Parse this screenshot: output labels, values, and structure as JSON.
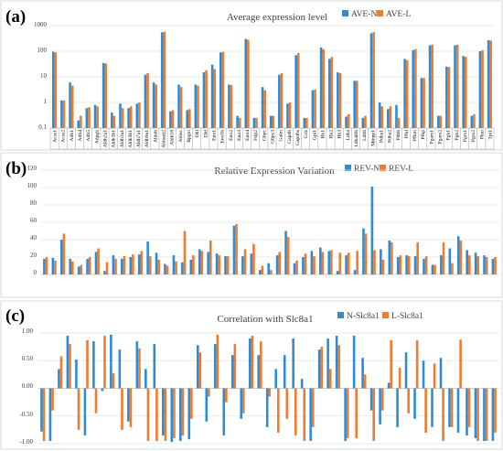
{
  "panel_labels": [
    "(a)",
    "(b)",
    "(c)"
  ],
  "colors": {
    "series1": "#2e8bd6",
    "series2": "#ee7b2e"
  },
  "chart_data": [
    {
      "type": "bar",
      "title": "Average expression level",
      "yscale": "log",
      "ylim": [
        0.1,
        1000
      ],
      "yticks": [
        "0.1",
        "1",
        "10",
        "100",
        "1000"
      ],
      "legend_position": "top-right",
      "categories": [
        "Acss1",
        "Acss2",
        "Adh1",
        "Adh4",
        "Adh5",
        "Adpgk",
        "Aldh2a1",
        "Aldh1b1",
        "Aldh3a1",
        "Aldh3b1",
        "Aldh7a1",
        "Aldh9a1",
        "Aldob",
        "Aldoart2",
        "Aldh18",
        "Aldoc",
        "Bpgm",
        "Dhl",
        "Dld",
        "Eno1",
        "Eno1b",
        "Eno2",
        "Eno3",
        "Eno4",
        "Ftlp2",
        "G6pc",
        "G6pc3",
        "Galm",
        "Gapdh",
        "Gapdhs",
        "Gck",
        "Gpi1",
        "Hk1",
        "Hk2",
        "Hk3",
        "Ldha",
        "Ldhal6b",
        "Ldhb",
        "Minpp1",
        "Pdha1",
        "Pdha2",
        "Pdhb",
        "Pfkl",
        "Pfkm",
        "Pfkp",
        "Pgam1",
        "Pgam2",
        "Pgk1",
        "Pgk2",
        "Pgm1",
        "Pgm2",
        "Pkm",
        "Tpi1"
      ],
      "series": [
        {
          "name": "AVE-N",
          "values": [
            95,
            1.2,
            6,
            0.2,
            0.6,
            0.8,
            35,
            0.4,
            0.9,
            0.6,
            0.9,
            12,
            6,
            550,
            0.45,
            5,
            0.5,
            5,
            15,
            30,
            90,
            5,
            0.3,
            300,
            0.25,
            4,
            0.3,
            12,
            0.9,
            70,
            0.25,
            3,
            140,
            50,
            15,
            0.28,
            7,
            0.25,
            500,
            1,
            0.55,
            0.8,
            50,
            110,
            9,
            170,
            0.3,
            25,
            170,
            65,
            0.3,
            100,
            270
          ]
        },
        {
          "name": "AVE-L",
          "values": [
            90,
            1.2,
            4.5,
            0.3,
            0.65,
            0.7,
            33,
            0.3,
            0.6,
            0.7,
            1,
            14,
            5,
            580,
            0.5,
            4,
            0.55,
            4.5,
            18,
            20,
            95,
            4.8,
            0.25,
            280,
            0.25,
            3,
            0.3,
            14,
            1,
            85,
            0.25,
            3.2,
            120,
            60,
            14,
            0.35,
            7,
            0.3,
            560,
            0.7,
            0.7,
            0.25,
            45,
            120,
            9,
            180,
            0.3,
            24,
            180,
            60,
            0.35,
            110,
            260
          ]
        }
      ]
    },
    {
      "type": "bar",
      "title": "Relative Expression Variation",
      "ylim": [
        0,
        120
      ],
      "yticks": [
        "0",
        "20",
        "40",
        "60",
        "80",
        "100",
        "120"
      ],
      "legend_position": "top-right",
      "series": [
        {
          "name": "REV-N",
          "values": [
            18,
            19,
            40,
            18,
            9,
            18,
            26,
            4,
            22,
            18,
            20,
            23,
            38,
            25,
            12,
            22,
            14,
            17,
            29,
            26,
            24,
            21,
            56,
            21,
            24,
            5,
            13,
            22,
            50,
            13,
            20,
            27,
            31,
            27,
            4,
            22,
            5,
            53,
            101,
            29,
            39,
            20,
            22,
            21,
            18,
            11,
            22,
            30,
            44,
            28,
            25,
            22,
            18
          ]
        },
        {
          "name": "REV-L",
          "values": [
            20,
            16,
            47,
            15,
            11,
            20,
            30,
            14,
            18,
            21,
            23,
            27,
            21,
            17,
            10,
            15,
            50,
            22,
            27,
            39,
            22,
            21,
            58,
            29,
            35,
            10,
            5,
            26,
            43,
            16,
            24,
            21,
            26,
            28,
            25,
            25,
            27,
            47,
            28,
            17,
            37,
            22,
            21,
            37,
            21,
            11,
            37,
            13,
            39,
            22,
            21,
            20,
            20
          ]
        }
      ]
    },
    {
      "type": "bar",
      "title": "Correlation with Slc8a1",
      "ylim": [
        -1,
        1
      ],
      "yticks": [
        "-1.00",
        "-0.50",
        "0.00",
        "0.50",
        "1.00"
      ],
      "legend_position": "top-right",
      "series": [
        {
          "name": "N-Slc8a1",
          "values": [
            -0.78,
            -0.95,
            0.35,
            0.95,
            0.52,
            -0.85,
            0.85,
            -0.05,
            0.97,
            0.7,
            -0.6,
            0.85,
            0.35,
            0.8,
            -0.85,
            -0.97,
            -0.95,
            -0.92,
            0.78,
            -0.6,
            0.8,
            -0.85,
            0.6,
            -0.55,
            0.9,
            0.6,
            -0.7,
            0.35,
            0.6,
            0.9,
            0.17,
            -0.95,
            0.7,
            0.9,
            0.95,
            -0.95,
            0.95,
            0.55,
            -0.4,
            -0.65,
            0.1,
            -0.7,
            0.65,
            -0.55,
            0.5,
            -0.7,
            0.55,
            -0.7,
            -0.8,
            -0.85,
            -0.9,
            -0.95,
            -0.95
          ]
        },
        {
          "name": "L-Slc8a1",
          "values": [
            -0.95,
            -0.4,
            0.58,
            0.8,
            -0.75,
            0.87,
            -0.45,
            0.95,
            0.27,
            -0.75,
            -0.7,
            0.72,
            -0.95,
            -0.95,
            -0.95,
            -0.9,
            -0.85,
            -0.55,
            0.65,
            -0.15,
            0.97,
            -0.25,
            0.8,
            -0.45,
            0.95,
            0.85,
            -0.15,
            -0.8,
            -0.55,
            -0.85,
            -0.95,
            -0.7,
            0.75,
            0.35,
            0.78,
            -0.9,
            -0.9,
            0.25,
            -0.95,
            -0.4,
            0.87,
            0.37,
            -0.45,
            0.87,
            -0.8,
            0.45,
            -0.95,
            -0.7,
            0.88,
            -0.7,
            -0.95,
            -0.95,
            -0.8
          ]
        }
      ]
    }
  ]
}
